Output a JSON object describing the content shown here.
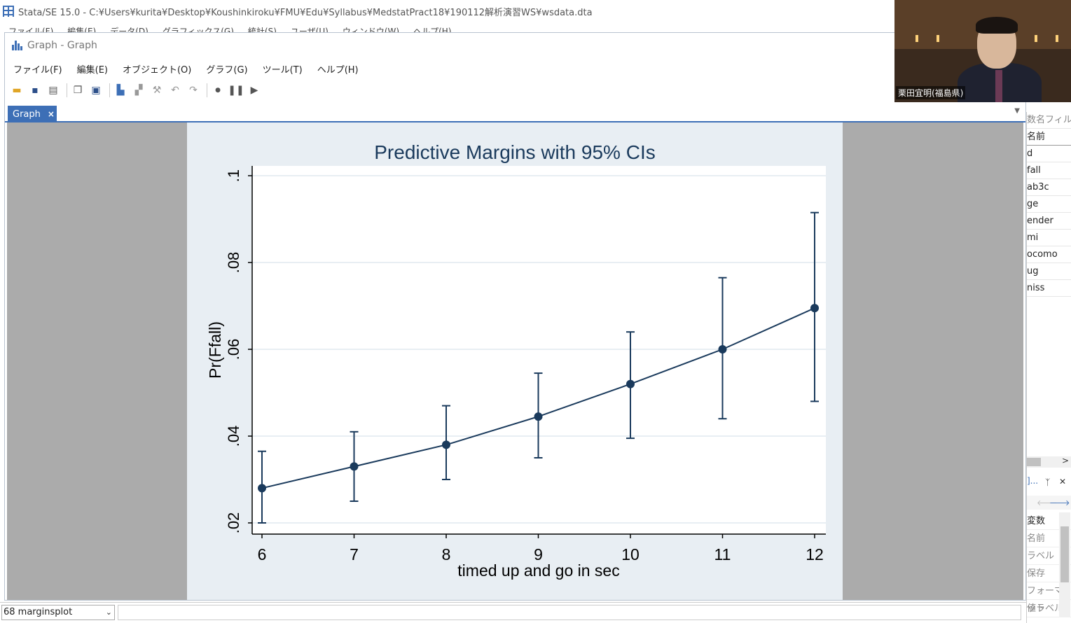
{
  "main_window": {
    "title": "Stata/SE 15.0 - C:¥Users¥kurita¥Desktop¥Koushinkiroku¥FMU¥Edu¥Syllabus¥MedstatPract18¥190112解析演習WS¥wsdata.dta",
    "menu": [
      "ファイル(F)",
      "編集(E)",
      "データ(D)",
      "グラフィックス(G)",
      "統計(S)",
      "ユーザ(U)",
      "ウィンドウ(W)",
      "ヘルプ(H)"
    ]
  },
  "graph_window": {
    "title": "Graph - Graph",
    "menu": [
      "ファイル(F)",
      "編集(E)",
      "オブジェクト(O)",
      "グラフ(G)",
      "ツール(T)",
      "ヘルプ(H)"
    ],
    "tab_label": "Graph",
    "tab_close": "×"
  },
  "webcam": {
    "name_label": "栗田宜明(福島県)"
  },
  "variables_panel": {
    "filter_placeholder": "数名フィルタ",
    "header": "名前",
    "items": [
      "d",
      "fall",
      "ab3c",
      "ge",
      "ender",
      "mi",
      "ocomo",
      "ug",
      "niss"
    ]
  },
  "properties_panel": {
    "title": "]...",
    "pin": "ᛉ",
    "close": "✕",
    "section": "変数",
    "rows": [
      "名前",
      "ラベル",
      "保存",
      "フォーマット",
      "値ラベル"
    ]
  },
  "command": {
    "history_value": "68 marginsplot"
  },
  "colors": {
    "accent": "#3d6fb6",
    "plot_line": "#1a3a5c",
    "plot_bg": "#ffffff",
    "outer_bg": "#e8eef3",
    "canvas_bg": "#ababab"
  },
  "chart_data": {
    "type": "line",
    "title": "Predictive Margins with 95% CIs",
    "xlabel": "timed up and go in sec",
    "ylabel": "Pr(Ffall)",
    "x": [
      6,
      7,
      8,
      9,
      10,
      11,
      12
    ],
    "y": [
      0.028,
      0.033,
      0.038,
      0.0445,
      0.052,
      0.06,
      0.0695
    ],
    "ci_lower": [
      0.02,
      0.025,
      0.03,
      0.035,
      0.0395,
      0.044,
      0.048
    ],
    "ci_upper": [
      0.0365,
      0.041,
      0.047,
      0.0545,
      0.064,
      0.0765,
      0.0915
    ],
    "xlim": [
      6,
      12
    ],
    "ylim": [
      0.02,
      0.1
    ],
    "xticks": [
      6,
      7,
      8,
      9,
      10,
      11,
      12
    ],
    "yticks": [
      0.02,
      0.04,
      0.06,
      0.08,
      0.1
    ],
    "ytick_labels": [
      ".02",
      ".04",
      ".06",
      ".08",
      ".1"
    ],
    "grid": true,
    "legend": "none"
  }
}
